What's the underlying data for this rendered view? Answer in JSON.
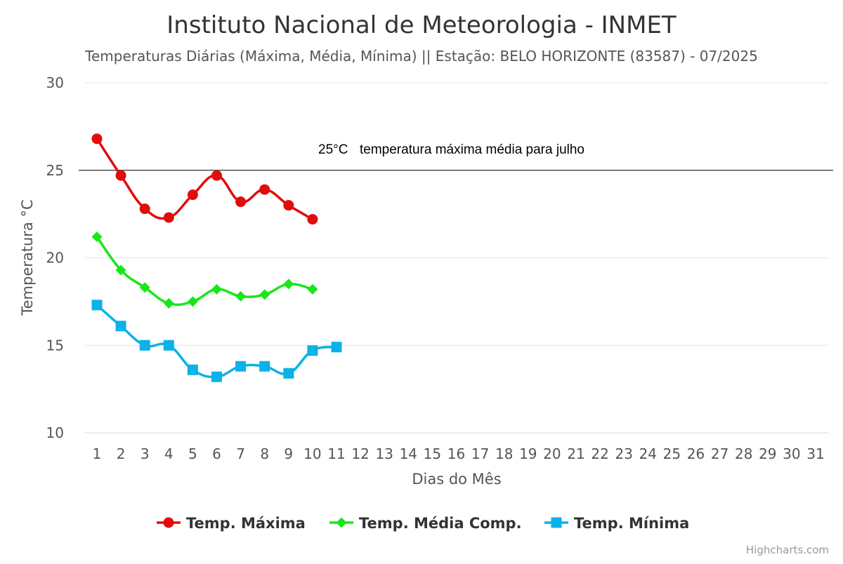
{
  "page": {
    "credits": "Highcharts.com"
  },
  "chart_data": {
    "type": "line",
    "title": "Instituto Nacional de Meteorologia - INMET",
    "subtitle": "Temperaturas Diárias (Máxima, Média, Mínima) || Estação: BELO HORIZONTE (83587) - 07/2025",
    "xlabel": "Dias do Mês",
    "ylabel": "Temperatura °C",
    "x": [
      1,
      2,
      3,
      4,
      5,
      6,
      7,
      8,
      9,
      10,
      11,
      12,
      13,
      14,
      15,
      16,
      17,
      18,
      19,
      20,
      21,
      22,
      23,
      24,
      25,
      26,
      27,
      28,
      29,
      30,
      31
    ],
    "ylim": [
      10,
      30
    ],
    "yticks": [
      10,
      15,
      20,
      25,
      30
    ],
    "grid": true,
    "legend_position": "bottom-center",
    "series": [
      {
        "name": "Temp. Máxima",
        "color": "#e30c0c",
        "marker": "circle",
        "x": [
          1,
          2,
          3,
          4,
          5,
          6,
          7,
          8,
          9,
          10
        ],
        "values": [
          26.8,
          24.7,
          22.8,
          22.3,
          23.6,
          24.7,
          23.2,
          23.9,
          23.0,
          22.2
        ]
      },
      {
        "name": "Temp. Média Comp.",
        "color": "#19e619",
        "marker": "diamond",
        "x": [
          1,
          2,
          3,
          4,
          5,
          6,
          7,
          8,
          9,
          10
        ],
        "values": [
          21.2,
          19.3,
          18.3,
          17.4,
          17.5,
          18.2,
          17.8,
          17.9,
          18.5,
          18.2
        ]
      },
      {
        "name": "Temp. Mínima",
        "color": "#0ab2e8",
        "marker": "square",
        "x": [
          1,
          2,
          3,
          4,
          5,
          6,
          7,
          8,
          9,
          10,
          11
        ],
        "values": [
          17.3,
          16.1,
          15.0,
          15.0,
          13.6,
          13.2,
          13.8,
          13.8,
          13.4,
          14.7,
          14.9
        ]
      }
    ],
    "annotations": [
      {
        "y": 25,
        "value_label": "25°C",
        "text": "temperatura máxima média para julho"
      }
    ]
  }
}
